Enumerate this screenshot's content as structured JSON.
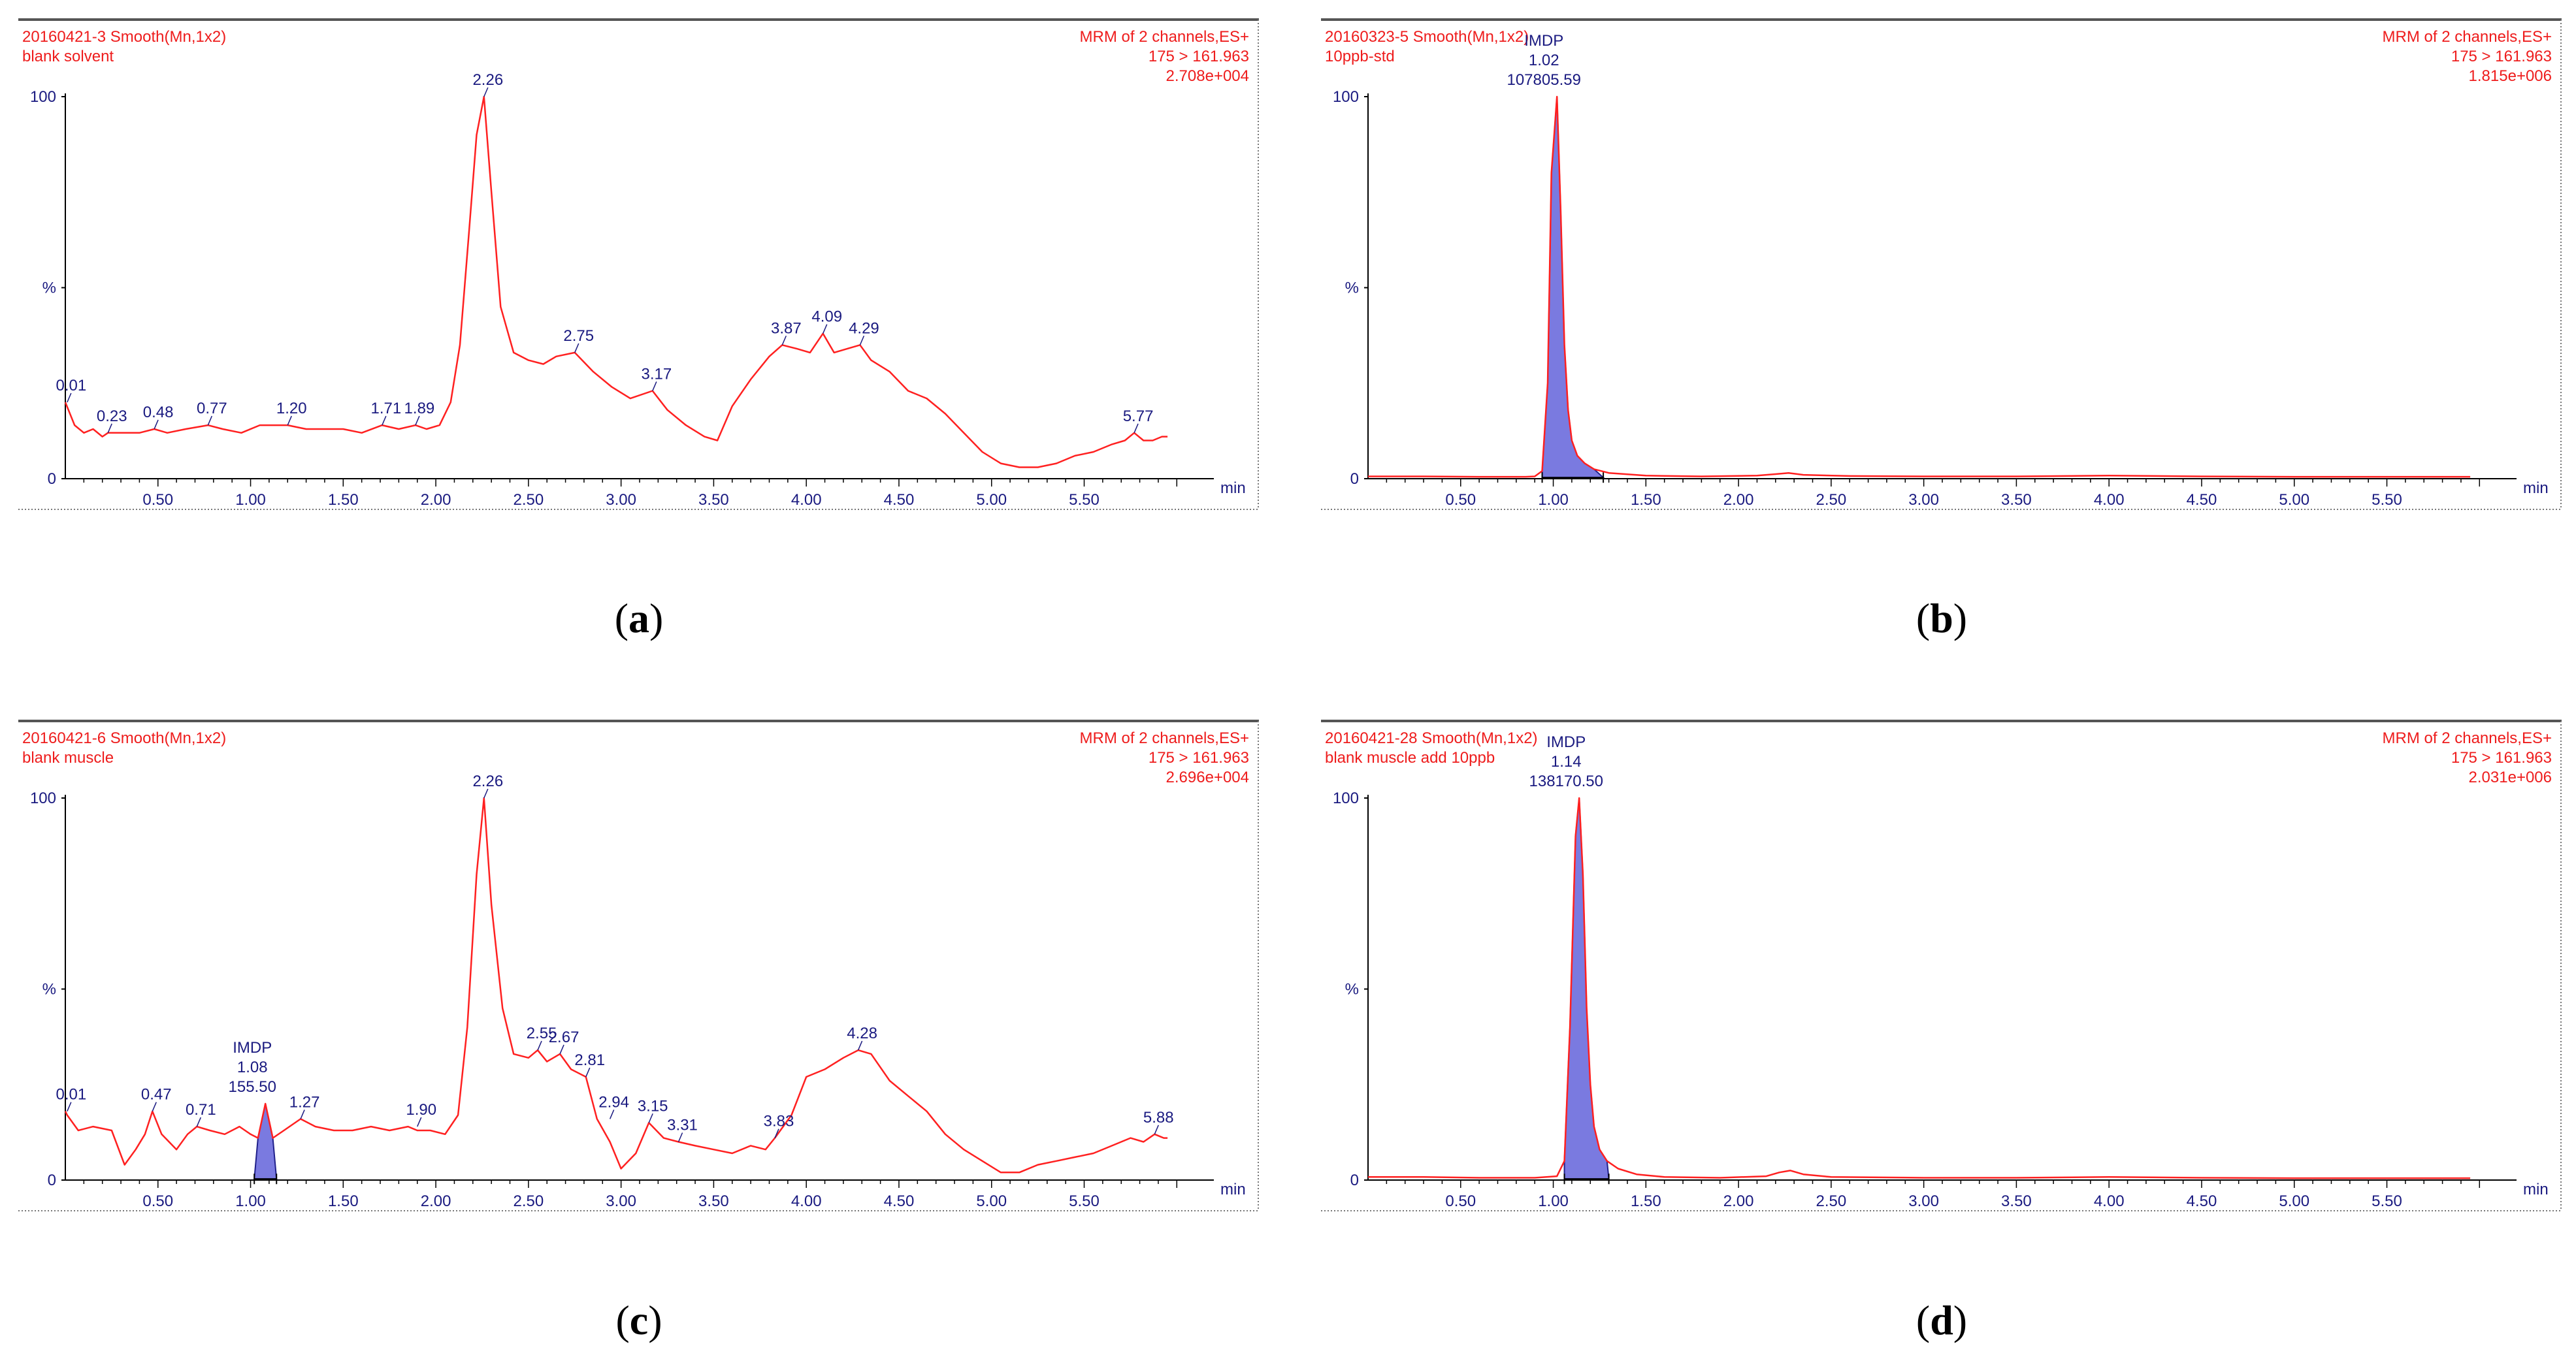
{
  "colors": {
    "trace": "#ff2020",
    "header": "#ee1c1c",
    "peak_label": "#1a1a80",
    "fill": "#7a7ae0",
    "axis": "#000000",
    "frame": "#777777"
  },
  "chart_data": [
    {
      "type": "line",
      "panel": "a",
      "caption": "a",
      "header_left": [
        "20160421-3 Smooth(Mn,1x2)",
        "blank solvent"
      ],
      "header_right": [
        "MRM of 2 channels,ES+",
        "175 > 161.963",
        "2.708e+004"
      ],
      "xlabel": "min",
      "ylabel": "%",
      "xlim": [
        0,
        6.2
      ],
      "ylim": [
        0,
        100
      ],
      "x_ticks": [
        0.5,
        1.0,
        1.5,
        2.0,
        2.5,
        3.0,
        3.5,
        4.0,
        4.5,
        5.0,
        5.5
      ],
      "x_tick_labels": [
        "0.50",
        "1.00",
        "1.50",
        "2.00",
        "2.50",
        "3.00",
        "3.50",
        "4.00",
        "4.50",
        "5.00",
        "5.50"
      ],
      "y_tick_labels": [
        "100",
        "%",
        "0"
      ],
      "x": [
        0.0,
        0.05,
        0.1,
        0.15,
        0.2,
        0.23,
        0.3,
        0.4,
        0.48,
        0.55,
        0.65,
        0.77,
        0.85,
        0.95,
        1.05,
        1.2,
        1.3,
        1.4,
        1.5,
        1.6,
        1.71,
        1.8,
        1.89,
        1.95,
        2.02,
        2.08,
        2.13,
        2.18,
        2.22,
        2.26,
        2.3,
        2.35,
        2.42,
        2.5,
        2.58,
        2.65,
        2.75,
        2.85,
        2.95,
        3.05,
        3.17,
        3.25,
        3.35,
        3.45,
        3.52,
        3.6,
        3.7,
        3.8,
        3.87,
        3.95,
        4.02,
        4.09,
        4.15,
        4.22,
        4.29,
        4.35,
        4.45,
        4.55,
        4.65,
        4.75,
        4.85,
        4.95,
        5.05,
        5.15,
        5.25,
        5.35,
        5.45,
        5.55,
        5.65,
        5.72,
        5.77,
        5.82,
        5.87,
        5.92,
        5.95
      ],
      "y": [
        20,
        14,
        12,
        13,
        11,
        12,
        12,
        12,
        13,
        12,
        13,
        14,
        13,
        12,
        14,
        14,
        13,
        13,
        13,
        12,
        14,
        13,
        14,
        13,
        14,
        20,
        35,
        65,
        90,
        100,
        75,
        45,
        33,
        31,
        30,
        32,
        33,
        28,
        24,
        21,
        23,
        18,
        14,
        11,
        10,
        19,
        26,
        32,
        35,
        34,
        33,
        38,
        33,
        34,
        35,
        31,
        28,
        23,
        21,
        17,
        12,
        7,
        4,
        3,
        3,
        4,
        6,
        7,
        9,
        10,
        12,
        10,
        10,
        11,
        11
      ],
      "peak_labels": [
        {
          "x": 0.01,
          "y": 20,
          "text": "0.01"
        },
        {
          "x": 0.23,
          "y": 12,
          "text": "0.23"
        },
        {
          "x": 0.48,
          "y": 13,
          "text": "0.48"
        },
        {
          "x": 0.77,
          "y": 14,
          "text": "0.77"
        },
        {
          "x": 1.2,
          "y": 14,
          "text": "1.20"
        },
        {
          "x": 1.71,
          "y": 14,
          "text": "1.71"
        },
        {
          "x": 1.89,
          "y": 14,
          "text": "1.89"
        },
        {
          "x": 2.26,
          "y": 100,
          "text": "2.26"
        },
        {
          "x": 2.75,
          "y": 33,
          "text": "2.75"
        },
        {
          "x": 3.17,
          "y": 23,
          "text": "3.17"
        },
        {
          "x": 3.87,
          "y": 35,
          "text": "3.87"
        },
        {
          "x": 4.09,
          "y": 38,
          "text": "4.09"
        },
        {
          "x": 4.29,
          "y": 35,
          "text": "4.29"
        },
        {
          "x": 5.77,
          "y": 12,
          "text": "5.77"
        }
      ],
      "integrated_peak": null
    },
    {
      "type": "line",
      "panel": "b",
      "caption": "b",
      "header_left": [
        "20160323-5 Smooth(Mn,1x2)",
        "10ppb-std"
      ],
      "header_right": [
        "MRM of 2 channels,ES+",
        "175 > 161.963",
        "1.815e+006"
      ],
      "xlabel": "min",
      "ylabel": "%",
      "xlim": [
        0,
        6.2
      ],
      "ylim": [
        0,
        100
      ],
      "x_ticks": [
        0.5,
        1.0,
        1.5,
        2.0,
        2.5,
        3.0,
        3.5,
        4.0,
        4.5,
        5.0,
        5.5
      ],
      "x_tick_labels": [
        "0.50",
        "1.00",
        "1.50",
        "2.00",
        "2.50",
        "3.00",
        "3.50",
        "4.00",
        "4.50",
        "5.00",
        "5.50"
      ],
      "y_tick_labels": [
        "100",
        "%",
        "0"
      ],
      "x": [
        0.0,
        0.3,
        0.6,
        0.85,
        0.9,
        0.94,
        0.97,
        0.99,
        1.02,
        1.04,
        1.06,
        1.08,
        1.1,
        1.13,
        1.17,
        1.22,
        1.3,
        1.5,
        1.8,
        2.1,
        2.2,
        2.27,
        2.35,
        2.6,
        3.0,
        3.5,
        4.0,
        4.5,
        5.0,
        5.5,
        5.95
      ],
      "y": [
        0.6,
        0.6,
        0.5,
        0.5,
        0.6,
        2,
        25,
        80,
        100,
        70,
        35,
        18,
        10,
        6,
        4,
        2.5,
        1.5,
        0.8,
        0.6,
        0.8,
        1.2,
        1.5,
        1,
        0.7,
        0.6,
        0.6,
        0.8,
        0.6,
        0.5,
        0.5,
        0.5
      ],
      "peak_labels": [],
      "integrated_peak": {
        "name": "IMDP",
        "rt": "1.02",
        "area": "107805.59",
        "x_start": 0.94,
        "x_end": 1.27,
        "apex_x": 1.02
      }
    },
    {
      "type": "line",
      "panel": "c",
      "caption": "c",
      "header_left": [
        "20160421-6 Smooth(Mn,1x2)",
        "blank muscle"
      ],
      "header_right": [
        "MRM of 2 channels,ES+",
        "175 > 161.963",
        "2.696e+004"
      ],
      "xlabel": "min",
      "ylabel": "%",
      "xlim": [
        0,
        6.2
      ],
      "ylim": [
        0,
        100
      ],
      "x_ticks": [
        0.5,
        1.0,
        1.5,
        2.0,
        2.5,
        3.0,
        3.5,
        4.0,
        4.5,
        5.0,
        5.5
      ],
      "x_tick_labels": [
        "0.50",
        "1.00",
        "1.50",
        "2.00",
        "2.50",
        "3.00",
        "3.50",
        "4.00",
        "4.50",
        "5.00",
        "5.50"
      ],
      "y_tick_labels": [
        "100",
        "%",
        "0"
      ],
      "x": [
        0.0,
        0.01,
        0.07,
        0.15,
        0.25,
        0.32,
        0.38,
        0.43,
        0.47,
        0.52,
        0.6,
        0.66,
        0.71,
        0.78,
        0.86,
        0.94,
        1.0,
        1.04,
        1.08,
        1.12,
        1.18,
        1.27,
        1.35,
        1.45,
        1.55,
        1.65,
        1.75,
        1.85,
        1.9,
        1.97,
        2.05,
        2.12,
        2.17,
        2.22,
        2.26,
        2.3,
        2.36,
        2.42,
        2.5,
        2.55,
        2.6,
        2.67,
        2.73,
        2.81,
        2.87,
        2.94,
        3.0,
        3.08,
        3.15,
        3.23,
        3.31,
        3.4,
        3.5,
        3.6,
        3.7,
        3.78,
        3.83,
        3.92,
        4.0,
        4.1,
        4.2,
        4.28,
        4.35,
        4.45,
        4.55,
        4.65,
        4.75,
        4.85,
        4.95,
        5.05,
        5.15,
        5.25,
        5.35,
        5.45,
        5.55,
        5.65,
        5.75,
        5.82,
        5.88,
        5.93,
        5.95
      ],
      "y": [
        18,
        17,
        13,
        14,
        13,
        4,
        8,
        12,
        18,
        12,
        8,
        12,
        14,
        13,
        12,
        14,
        12,
        11,
        20,
        11,
        13,
        16,
        14,
        13,
        13,
        14,
        13,
        14,
        13,
        13,
        12,
        17,
        40,
        80,
        100,
        72,
        45,
        33,
        32,
        34,
        31,
        33,
        29,
        27,
        16,
        10,
        3,
        7,
        15,
        11,
        10,
        9,
        8,
        7,
        9,
        8,
        11,
        17,
        27,
        29,
        32,
        34,
        33,
        26,
        22,
        18,
        12,
        8,
        5,
        2,
        2,
        4,
        5,
        6,
        7,
        9,
        11,
        10,
        12,
        11,
        11
      ],
      "peak_labels": [
        {
          "x": 0.01,
          "y": 18,
          "text": "0.01"
        },
        {
          "x": 0.47,
          "y": 18,
          "text": "0.47"
        },
        {
          "x": 0.71,
          "y": 14,
          "text": "0.71"
        },
        {
          "x": 1.27,
          "y": 16,
          "text": "1.27"
        },
        {
          "x": 1.9,
          "y": 14,
          "text": "1.90"
        },
        {
          "x": 2.26,
          "y": 100,
          "text": "2.26"
        },
        {
          "x": 2.55,
          "y": 34,
          "text": "2.55"
        },
        {
          "x": 2.67,
          "y": 33,
          "text": "2.67"
        },
        {
          "x": 2.81,
          "y": 27,
          "text": "2.81"
        },
        {
          "x": 2.94,
          "y": 16,
          "text": "2.94"
        },
        {
          "x": 3.15,
          "y": 15,
          "text": "3.15"
        },
        {
          "x": 3.31,
          "y": 10,
          "text": "3.31"
        },
        {
          "x": 3.83,
          "y": 11,
          "text": "3.83"
        },
        {
          "x": 4.28,
          "y": 34,
          "text": "4.28"
        },
        {
          "x": 5.88,
          "y": 12,
          "text": "5.88"
        }
      ],
      "integrated_peak": {
        "name": "IMDP",
        "rt": "1.08",
        "area": "155.50",
        "x_start": 1.02,
        "x_end": 1.14,
        "apex_x": 1.08
      }
    },
    {
      "type": "line",
      "panel": "d",
      "caption": "d",
      "header_left": [
        "20160421-28 Smooth(Mn,1x2)",
        "blank muscle add 10ppb"
      ],
      "header_right": [
        "MRM of 2 channels,ES+",
        "175 > 161.963",
        "2.031e+006"
      ],
      "xlabel": "min",
      "ylabel": "%",
      "xlim": [
        0,
        6.2
      ],
      "ylim": [
        0,
        100
      ],
      "x_ticks": [
        0.5,
        1.0,
        1.5,
        2.0,
        2.5,
        3.0,
        3.5,
        4.0,
        4.5,
        5.0,
        5.5
      ],
      "x_tick_labels": [
        "0.50",
        "1.00",
        "1.50",
        "2.00",
        "2.50",
        "3.00",
        "3.50",
        "4.00",
        "4.50",
        "5.00",
        "5.50"
      ],
      "y_tick_labels": [
        "100",
        "%",
        "0"
      ],
      "x": [
        0.0,
        0.3,
        0.6,
        0.9,
        1.02,
        1.06,
        1.09,
        1.12,
        1.14,
        1.16,
        1.18,
        1.2,
        1.22,
        1.25,
        1.29,
        1.35,
        1.45,
        1.6,
        1.9,
        2.15,
        2.22,
        2.28,
        2.35,
        2.5,
        3.0,
        3.5,
        4.0,
        4.5,
        5.0,
        5.5,
        5.95
      ],
      "y": [
        0.8,
        0.8,
        0.6,
        0.6,
        1,
        5,
        40,
        90,
        100,
        80,
        45,
        25,
        14,
        8,
        5,
        3,
        1.5,
        0.8,
        0.6,
        1,
        2,
        2.5,
        1.5,
        0.8,
        0.6,
        0.6,
        0.8,
        0.6,
        0.5,
        0.5,
        0.5
      ],
      "peak_labels": [],
      "integrated_peak": {
        "name": "IMDP",
        "rt": "1.14",
        "area": "138170.50",
        "x_start": 1.06,
        "x_end": 1.3,
        "apex_x": 1.14
      }
    }
  ]
}
